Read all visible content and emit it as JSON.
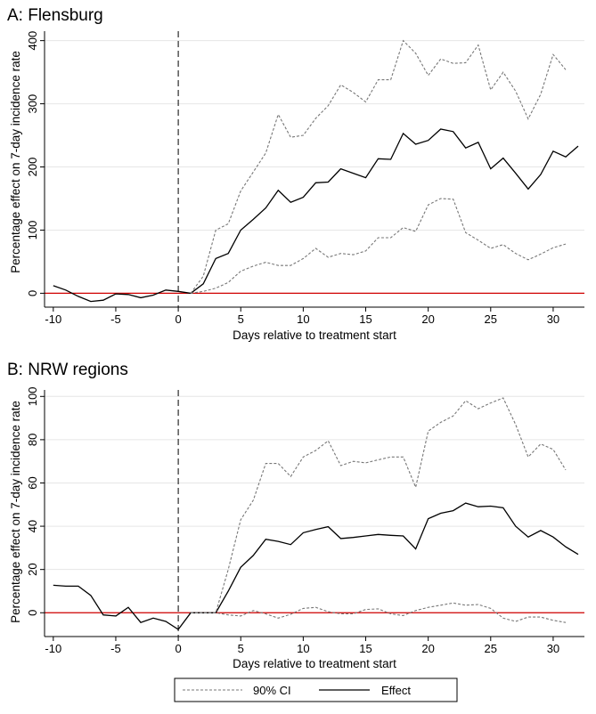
{
  "chart_data": [
    {
      "type": "line",
      "title": "A: Flensburg",
      "xlabel": "Days relative to treatment start",
      "ylabel": "Percentage effect on 7-day incidence rate",
      "xlim": [
        -10.7,
        32.5
      ],
      "ylim": [
        -22,
        415
      ],
      "xticks": [
        -10,
        -5,
        0,
        5,
        10,
        15,
        20,
        25,
        30
      ],
      "yticks": [
        0,
        100,
        200,
        300,
        400
      ],
      "grid": true,
      "treatment_line_x": 0,
      "reference_line_y": 0,
      "series": [
        {
          "name": "Effect",
          "x": [
            -10,
            -9,
            -8,
            -7,
            -6,
            -5,
            -4,
            -3,
            -2,
            -1,
            0,
            1,
            2,
            3,
            4,
            5,
            6,
            7,
            8,
            9,
            10,
            11,
            12,
            13,
            14,
            15,
            16,
            17,
            18,
            19,
            20,
            21,
            22,
            23,
            24,
            25,
            26,
            27,
            28,
            29,
            30,
            31,
            32
          ],
          "values": [
            12,
            5,
            -5,
            -13,
            -11,
            -1,
            -2,
            -7,
            -3,
            5,
            3,
            0,
            15,
            55,
            63,
            100,
            117,
            135,
            163,
            144,
            152,
            175,
            176,
            197,
            190,
            183,
            213,
            212,
            253,
            236,
            242,
            260,
            256,
            230,
            239,
            197,
            214,
            190,
            165,
            188,
            225,
            216,
            233
          ]
        },
        {
          "name": "90% CI",
          "x": [
            1,
            2,
            3,
            4,
            5,
            6,
            7,
            8,
            9,
            10,
            11,
            12,
            13,
            14,
            15,
            16,
            17,
            18,
            19,
            20,
            21,
            22,
            23,
            24,
            25,
            26,
            27,
            28,
            29,
            30,
            31
          ],
          "values": [
            0,
            27,
            100,
            110,
            162,
            192,
            222,
            283,
            247,
            250,
            277,
            297,
            330,
            318,
            303,
            338,
            338,
            400,
            380,
            345,
            371,
            364,
            365,
            393,
            322,
            350,
            320,
            276,
            315,
            378,
            354
          ]
        },
        {
          "name": "90% CI lower",
          "x": [
            1,
            2,
            3,
            4,
            5,
            6,
            7,
            8,
            9,
            10,
            11,
            12,
            13,
            14,
            15,
            16,
            17,
            18,
            19,
            20,
            21,
            22,
            23,
            24,
            25,
            26,
            27,
            28,
            29,
            30,
            31
          ],
          "values": [
            0,
            3,
            8,
            17,
            35,
            43,
            49,
            44,
            44,
            55,
            71,
            57,
            63,
            61,
            67,
            88,
            88,
            104,
            98,
            140,
            150,
            149,
            96,
            84,
            71,
            77,
            63,
            53,
            62,
            72,
            78
          ]
        }
      ]
    },
    {
      "type": "line",
      "title": "B: NRW regions",
      "xlabel": "Days relative to treatment start",
      "ylabel": "Percentage effect on 7-day incidence rate",
      "xlim": [
        -10.7,
        32.5
      ],
      "ylim": [
        -11,
        103
      ],
      "xticks": [
        -10,
        -5,
        0,
        5,
        10,
        15,
        20,
        25,
        30
      ],
      "yticks": [
        0,
        20,
        40,
        60,
        80,
        100
      ],
      "grid": true,
      "treatment_line_x": 0,
      "reference_line_y": 0,
      "series": [
        {
          "name": "Effect",
          "x": [
            -10,
            -9,
            -8,
            -7,
            -6,
            -5,
            -4,
            -3,
            -2,
            -1,
            0,
            1,
            2,
            3,
            4,
            5,
            6,
            7,
            8,
            9,
            10,
            11,
            12,
            13,
            14,
            15,
            16,
            17,
            18,
            19,
            20,
            21,
            22,
            23,
            24,
            25,
            26,
            27,
            28,
            29,
            30,
            31,
            32
          ],
          "values": [
            12.7,
            12.3,
            12.3,
            8,
            -1,
            -1.5,
            2.5,
            -4.5,
            -2.5,
            -4,
            -7.7,
            0,
            0,
            0,
            10,
            21,
            26.5,
            34,
            33,
            31.5,
            37,
            38.5,
            39.8,
            34.3,
            34.8,
            35.5,
            36.2,
            35.8,
            35.5,
            29.5,
            43.5,
            46,
            47.2,
            50.7,
            49,
            49.3,
            48.5,
            40,
            35,
            38,
            35,
            30.5,
            27
          ]
        },
        {
          "name": "90% CI",
          "x": [
            1,
            2,
            3,
            4,
            5,
            6,
            7,
            8,
            9,
            10,
            11,
            12,
            13,
            14,
            15,
            16,
            17,
            18,
            19,
            20,
            21,
            22,
            23,
            24,
            25,
            26,
            27,
            28,
            29,
            30,
            31
          ],
          "values": [
            0,
            0,
            0,
            20,
            43,
            52,
            69,
            69,
            63,
            72,
            75,
            79.5,
            68,
            70,
            69.3,
            70.7,
            72,
            72,
            58,
            84,
            88,
            91,
            98,
            94.3,
            97,
            99.3,
            87,
            72,
            78,
            75.5,
            66
          ]
        },
        {
          "name": "90% CI lower",
          "x": [
            1,
            2,
            3,
            4,
            5,
            6,
            7,
            8,
            9,
            10,
            11,
            12,
            13,
            14,
            15,
            16,
            17,
            18,
            19,
            20,
            21,
            22,
            23,
            24,
            25,
            26,
            27,
            28,
            29,
            30,
            31
          ],
          "values": [
            0,
            0,
            0,
            -1,
            -1.5,
            1,
            -0.5,
            -2.5,
            -0.7,
            2,
            2.5,
            0.5,
            -0.5,
            -0.5,
            1.5,
            1.8,
            -0.5,
            -1.3,
            1,
            2.5,
            3.5,
            4.5,
            3.5,
            3.8,
            2,
            -2.5,
            -4,
            -2,
            -2,
            -3.5,
            -4.5
          ]
        }
      ]
    }
  ],
  "legend": {
    "ci_label": "90% CI",
    "effect_label": "Effect"
  }
}
